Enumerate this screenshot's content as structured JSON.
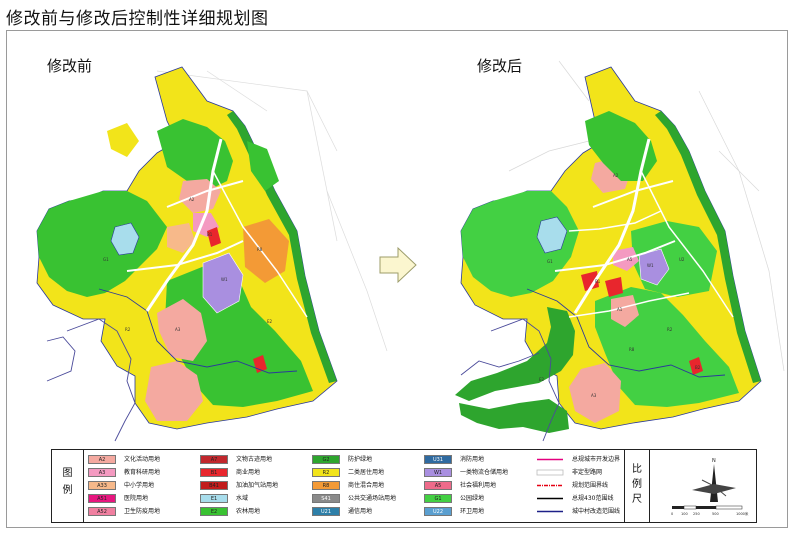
{
  "title": "修改前与修改后控制性详细规划图",
  "maps": {
    "before_label": "修改前",
    "after_label": "修改后"
  },
  "parcel_labels": [
    "A1",
    "A2",
    "A3",
    "A5",
    "B1",
    "B2",
    "E2",
    "G1",
    "R2",
    "R8",
    "U2",
    "W1"
  ],
  "legend": {
    "side_label_1": "图",
    "side_label_2": "例",
    "items": [
      {
        "code": "A2",
        "label": "文化活动用地",
        "color": "#f4a9a0"
      },
      {
        "code": "A3",
        "label": "教育科研用地",
        "color": "#f49ac1"
      },
      {
        "code": "A33",
        "label": "中小学用地",
        "color": "#f7b98a"
      },
      {
        "code": "A51",
        "label": "医院用地",
        "color": "#e7167f"
      },
      {
        "code": "A52",
        "label": "卫生防疫用地",
        "color": "#f07fa0"
      },
      {
        "code": "A7",
        "label": "文物古迹用地",
        "color": "#c1272d"
      },
      {
        "code": "B1",
        "label": "商业用地",
        "color": "#e8262d"
      },
      {
        "code": "B41",
        "label": "加油加气站用地",
        "color": "#c21c1c"
      },
      {
        "code": "E1",
        "label": "水域",
        "color": "#a8ddec"
      },
      {
        "code": "E2",
        "label": "农林用地",
        "color": "#39c232"
      },
      {
        "code": "G2",
        "label": "防护绿地",
        "color": "#2ea52e"
      },
      {
        "code": "R2",
        "label": "二类居住用地",
        "color": "#f2e41a"
      },
      {
        "code": "R8",
        "label": "商住混合用地",
        "color": "#f39a36"
      },
      {
        "code": "S41",
        "label": "公共交通场站用地",
        "color": "#8a8a8a"
      },
      {
        "code": "U21",
        "label": "通信用地",
        "color": "#2d7fa8"
      },
      {
        "code": "U31",
        "label": "消防用地",
        "color": "#2f6aa0"
      },
      {
        "code": "W1",
        "label": "一类物流仓储用地",
        "color": "#a98fe0"
      },
      {
        "code": "A5",
        "label": "社会福利用地",
        "color": "#ee6a8a"
      },
      {
        "code": "G1",
        "label": "公园绿地",
        "color": "#43d043"
      },
      {
        "code": "U22",
        "label": "环卫用地",
        "color": "#5a9fd0"
      },
      {
        "code": "",
        "label": "总规城市开发边界",
        "color": "#e4007f"
      },
      {
        "code": "",
        "label": "非定型路网",
        "color": "#cccccc"
      },
      {
        "code": "",
        "label": "规划范围界线",
        "color": "#e60012"
      },
      {
        "code": "",
        "label": "总规430范围线",
        "color": "#000000"
      },
      {
        "code": "",
        "label": "城中村改造范围线",
        "color": "#1d2088"
      }
    ]
  },
  "scale": {
    "side_label_1": "比",
    "side_label_2": "例",
    "side_label_3": "尺",
    "north_letter": "N",
    "ticks": [
      "0",
      "100",
      "250",
      "500",
      "1000米"
    ]
  },
  "colors": {
    "yellow": "#f2e41a",
    "green": "#39c232",
    "green_light": "#43d043",
    "green_dark": "#2ea52e",
    "pink": "#f4a9a0",
    "orange": "#f39a36",
    "purple": "#a98fe0",
    "red": "#e8262d",
    "blue": "#2b3a9a",
    "water": "#a8ddec"
  }
}
